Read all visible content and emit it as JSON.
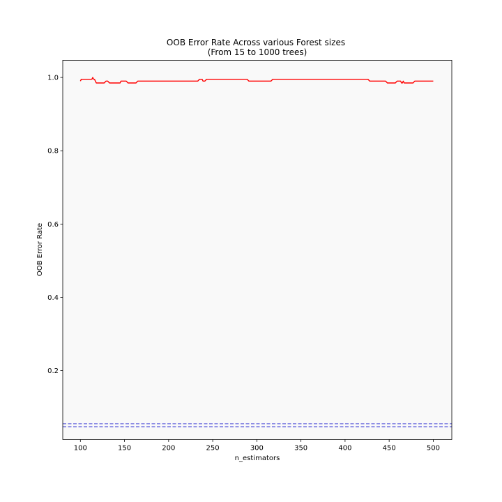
{
  "chart_data": {
    "type": "line",
    "title": "OOB Error Rate Across various Forest sizes",
    "subtitle": "(From 15 to 1000 trees)",
    "xlabel": "n_estimators",
    "ylabel": "OOB Error Rate",
    "xlim": [
      80,
      521
    ],
    "ylim": [
      0.012,
      1.047
    ],
    "xticks": [
      100,
      150,
      200,
      250,
      300,
      350,
      400,
      450,
      500
    ],
    "yticks": [
      0.2,
      0.4,
      0.6,
      0.8,
      1.0
    ],
    "ytick_labels": [
      "0.2",
      "0.4",
      "0.6",
      "0.8",
      "1.0"
    ],
    "plot_background": "#f9f9f9",
    "series": [
      {
        "color": "#ff0000",
        "style": "solid",
        "x": [
          100,
          101,
          104,
          113,
          114,
          115,
          116,
          118,
          119,
          127,
          129,
          131,
          133,
          145,
          146,
          152,
          154,
          163,
          165,
          233,
          235,
          238,
          239,
          241,
          243,
          289,
          291,
          316,
          318,
          426,
          428,
          446,
          448,
          457,
          459,
          463,
          464,
          465,
          466,
          467,
          468,
          477,
          479,
          500
        ],
        "y": [
          0.99,
          0.995,
          0.995,
          0.995,
          1.0,
          0.995,
          0.995,
          0.985,
          0.985,
          0.985,
          0.99,
          0.99,
          0.985,
          0.985,
          0.99,
          0.99,
          0.985,
          0.985,
          0.99,
          0.99,
          0.995,
          0.995,
          0.99,
          0.99,
          0.995,
          0.995,
          0.99,
          0.99,
          0.995,
          0.995,
          0.99,
          0.99,
          0.985,
          0.985,
          0.99,
          0.99,
          0.985,
          0.985,
          0.99,
          0.985,
          0.985,
          0.985,
          0.99,
          0.99
        ]
      }
    ],
    "hlines": [
      {
        "y": 0.055,
        "color": "#5c5cdb",
        "style": "dashed"
      },
      {
        "y": 0.047,
        "color": "#5c5cdb",
        "style": "dashed"
      }
    ]
  }
}
